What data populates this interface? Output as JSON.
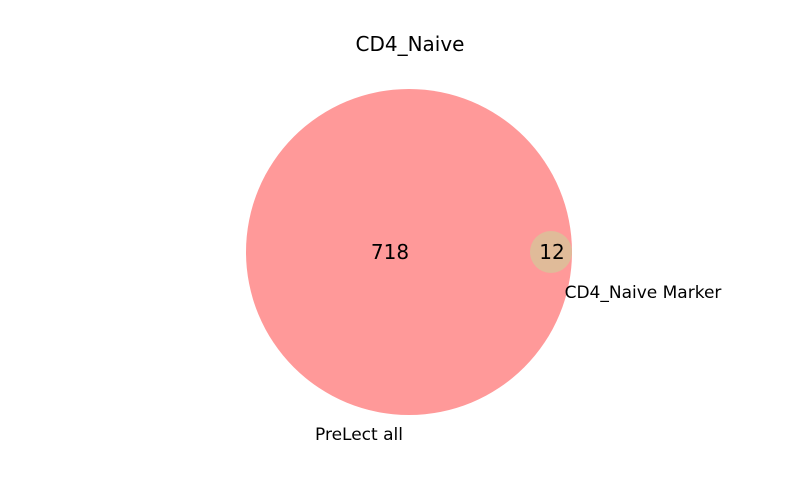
{
  "title": "CD4_Naive",
  "sets": [
    {
      "label": "PreLect all",
      "only_count": "718",
      "color": "#ff9999"
    },
    {
      "label": "CD4_Naive Marker",
      "only_count": "12",
      "color": "#e0bb99"
    }
  ],
  "intersection_count": "0"
}
